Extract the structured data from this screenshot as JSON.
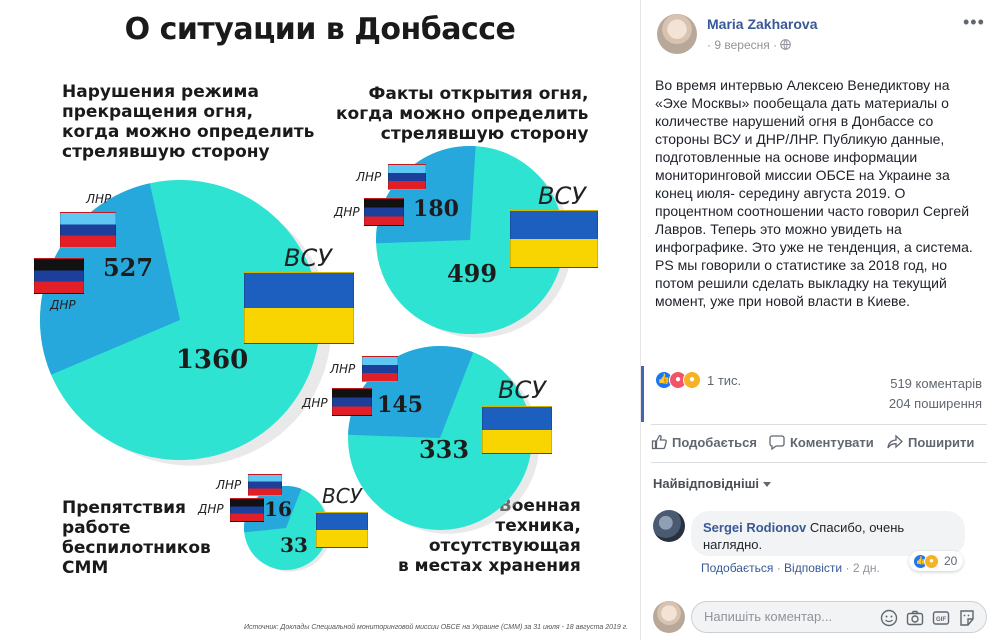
{
  "infographic": {
    "title": "О ситуации в Донбассе",
    "labels": {
      "ceasefire": "Нарушения режима\nпрекращения огня,\nкогда можно определить\nстрелявшую сторону",
      "opening_fire": "Факты открытия огня,\nкогда можно определить\nстрелявшую сторону",
      "drones": "Препятствия\nработе\nбеспилотников\nСММ",
      "equipment": "Военная\nтехника,\nотсутствующая\nв местах хранения"
    },
    "parties": {
      "lnr": "ЛНР",
      "dnr": "ДНР",
      "vsu": "ВСУ"
    },
    "source": "Источник: Доклады Специальной мониторинговой миссии ОБСЕ на Украине (СММ) за 31 июля - 18 августа 2019 г.",
    "colors": {
      "vsu": "#2ee3d2",
      "lnr_dnr": "#27a8dd",
      "shadow": "#cfcfcf"
    }
  },
  "chart_data": [
    {
      "type": "pie",
      "title": "Нарушения режима прекращения огня, когда можно определить стрелявшую сторону",
      "categories": [
        "ЛНР/ДНР",
        "ВСУ"
      ],
      "values": [
        527,
        1360
      ]
    },
    {
      "type": "pie",
      "title": "Факты открытия огня, когда можно определить стрелявшую сторону",
      "categories": [
        "ЛНР/ДНР",
        "ВСУ"
      ],
      "values": [
        180,
        499
      ]
    },
    {
      "type": "pie",
      "title": "Военная техника, отсутствующая в местах хранения",
      "categories": [
        "ЛНР/ДНР",
        "ВСУ"
      ],
      "values": [
        145,
        333
      ]
    },
    {
      "type": "pie",
      "title": "Препятствия работе беспилотников СММ",
      "categories": [
        "ЛНР/ДНР",
        "ВСУ"
      ],
      "values": [
        16,
        33
      ]
    }
  ],
  "post": {
    "author": "Maria Zakharova",
    "date": "9 вересня",
    "privacy_sep": "·",
    "text": "Во время интервью Алексею Венедиктову на «Эхе Москвы» пообещала дать материалы о количестве нарушений огня в Донбассе со стороны ВСУ и ДНР/ЛНР. Публикую данные, подготовленные на основе информации мониторинговой миссии ОБСЕ на Украине за конец июля- середину августа 2019. О процентном соотношении часто говорил Сергей Лавров. Теперь это можно увидеть на инфографике. Это уже не тенденция, а система.\nPS мы говорили о статистике за 2018 год, но потом решили сделать выкладку на текущий момент, уже при новой власти в Киеве.",
    "reactions_count": "1 тис.",
    "comments_count": "519 коментарів",
    "shares_count": "204 поширення",
    "actions": {
      "like": "Подобається",
      "comment": "Коментувати",
      "share": "Поширити"
    },
    "sort_label": "Найвідповідніші"
  },
  "comment": {
    "author": "Sergei Rodionov",
    "text": "Спасибо, очень наглядно.",
    "reactions": "20",
    "like": "Подобається",
    "reply": "Відповісти",
    "sep": "·",
    "time": "2 дн."
  },
  "reply_box": {
    "placeholder": "Напишіть коментар..."
  },
  "icons": [
    "privacy-globe-icon",
    "more-options-icon",
    "like-icon",
    "comment-icon",
    "share-icon",
    "emoji-icon",
    "camera-icon",
    "gif-icon",
    "sticker-icon"
  ]
}
